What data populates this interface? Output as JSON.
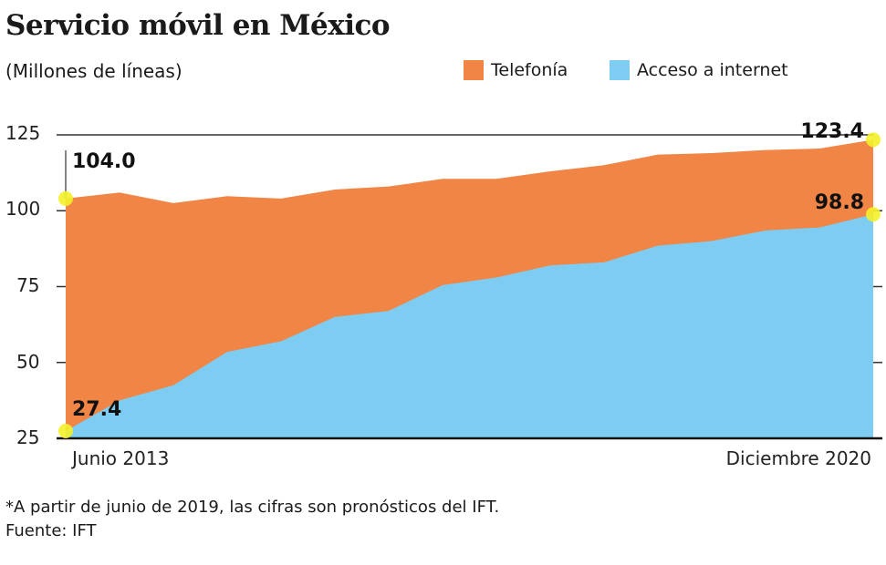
{
  "title": "Servicio móvil en México",
  "subtitle": "(Millones de líneas)",
  "footnote": "*A partir de junio de 2019, las cifras son pronósticos del IFT.",
  "source": "Fuente: IFT",
  "colors": {
    "telefonia": "#F08545",
    "internet": "#7FCCF3",
    "highlight": "#F4EF2A"
  },
  "chart_data": {
    "type": "area",
    "title": "Servicio móvil en México",
    "ylabel": "Millones de líneas",
    "ylim": [
      25,
      125
    ],
    "yticks": [
      "25",
      "50",
      "75",
      "100",
      "125"
    ],
    "x_labels": {
      "start": "Junio 2013",
      "end": "Diciembre 2020"
    },
    "legend": "top-right",
    "series": [
      {
        "name": "Telefonía",
        "values": [
          104.0,
          106,
          102.5,
          104.8,
          104,
          107,
          108,
          110.5,
          110.5,
          113,
          115,
          118.5,
          119,
          120,
          120.5,
          123.4
        ]
      },
      {
        "name": "Acceso a internet",
        "values": [
          27.4,
          37.5,
          42.5,
          53.5,
          57,
          65,
          67,
          75.5,
          78,
          82,
          83,
          88.5,
          90,
          93.5,
          94.5,
          98.8
        ]
      }
    ],
    "annotations": [
      "104.0",
      "27.4",
      "123.4",
      "98.8"
    ]
  }
}
